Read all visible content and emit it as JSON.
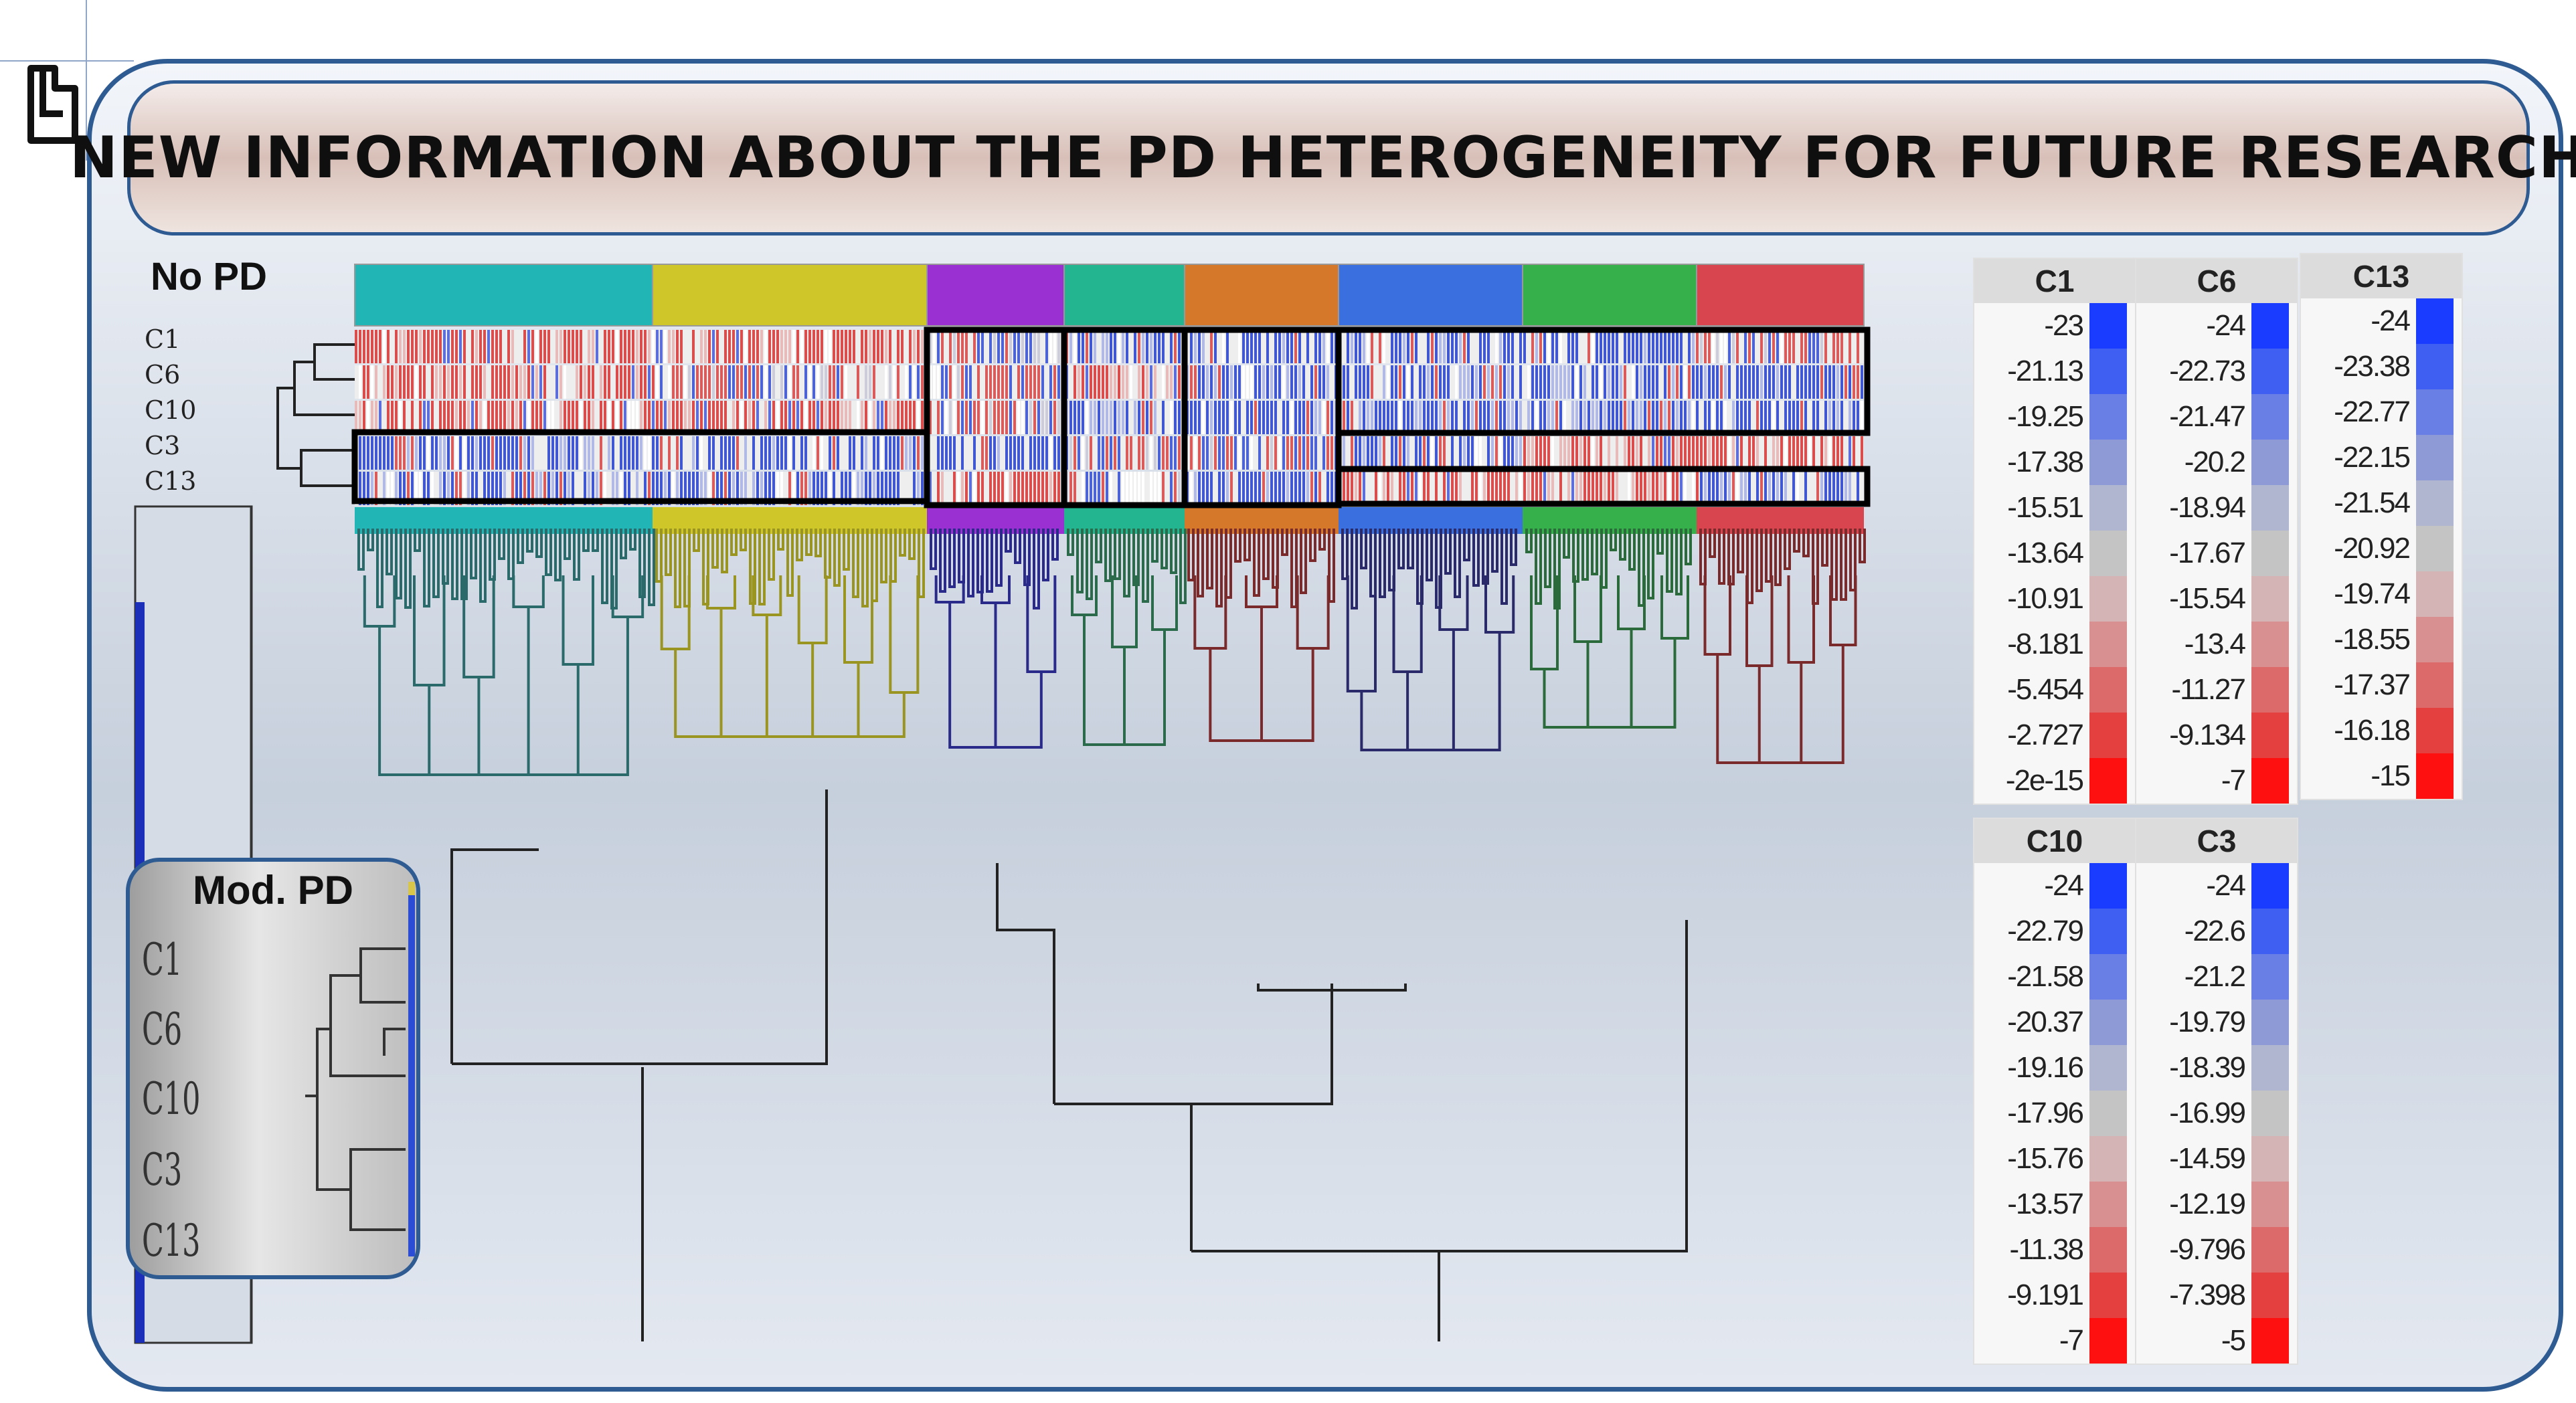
{
  "title": "NEW INFORMATION ABOUT THE PD HETEROGENEITY FOR FUTURE RESEARCH",
  "no_pd_panel": {
    "label": "No PD",
    "row_labels": [
      "C1",
      "C6",
      "C10",
      "C3",
      "C13"
    ]
  },
  "mod_pd_panel": {
    "label": "Mod. PD",
    "row_labels": [
      "C1",
      "C6",
      "C10",
      "C3",
      "C13"
    ]
  },
  "cluster_colors": [
    "#22b5b5",
    "#cfc62a",
    "#9a2fd2",
    "#22b58f",
    "#d6782a",
    "#3a6fe0",
    "#35b04a",
    "#d8454f"
  ],
  "legend_colors": [
    "#1a3cff",
    "#3f5ef2",
    "#6a7fe6",
    "#8e9ad6",
    "#b0b6cf",
    "#c4c4c4",
    "#d4b4b4",
    "#d89090",
    "#dd6a6a",
    "#e44040",
    "#ff1010"
  ],
  "legends": [
    {
      "title": "C1",
      "values": [
        "-23",
        "-21.13",
        "-19.25",
        "-17.38",
        "-15.51",
        "-13.64",
        "-10.91",
        "-8.181",
        "-5.454",
        "-2.727",
        "-2e-15"
      ]
    },
    {
      "title": "C6",
      "values": [
        "-24",
        "-22.73",
        "-21.47",
        "-20.2",
        "-18.94",
        "-17.67",
        "-15.54",
        "-13.4",
        "-11.27",
        "-9.134",
        "-7"
      ]
    },
    {
      "title": "C13",
      "values": [
        "-24",
        "-23.38",
        "-22.77",
        "-22.15",
        "-21.54",
        "-20.92",
        "-19.74",
        "-18.55",
        "-17.37",
        "-16.18",
        "-15"
      ]
    },
    {
      "title": "C10",
      "values": [
        "-24",
        "-22.79",
        "-21.58",
        "-20.37",
        "-19.16",
        "-17.96",
        "-15.76",
        "-13.57",
        "-11.38",
        "-9.191",
        "-7"
      ]
    },
    {
      "title": "C3",
      "values": [
        "-24",
        "-22.6",
        "-21.2",
        "-19.79",
        "-18.39",
        "-16.99",
        "-14.59",
        "-12.19",
        "-9.796",
        "-7.398",
        "-5"
      ]
    }
  ]
}
